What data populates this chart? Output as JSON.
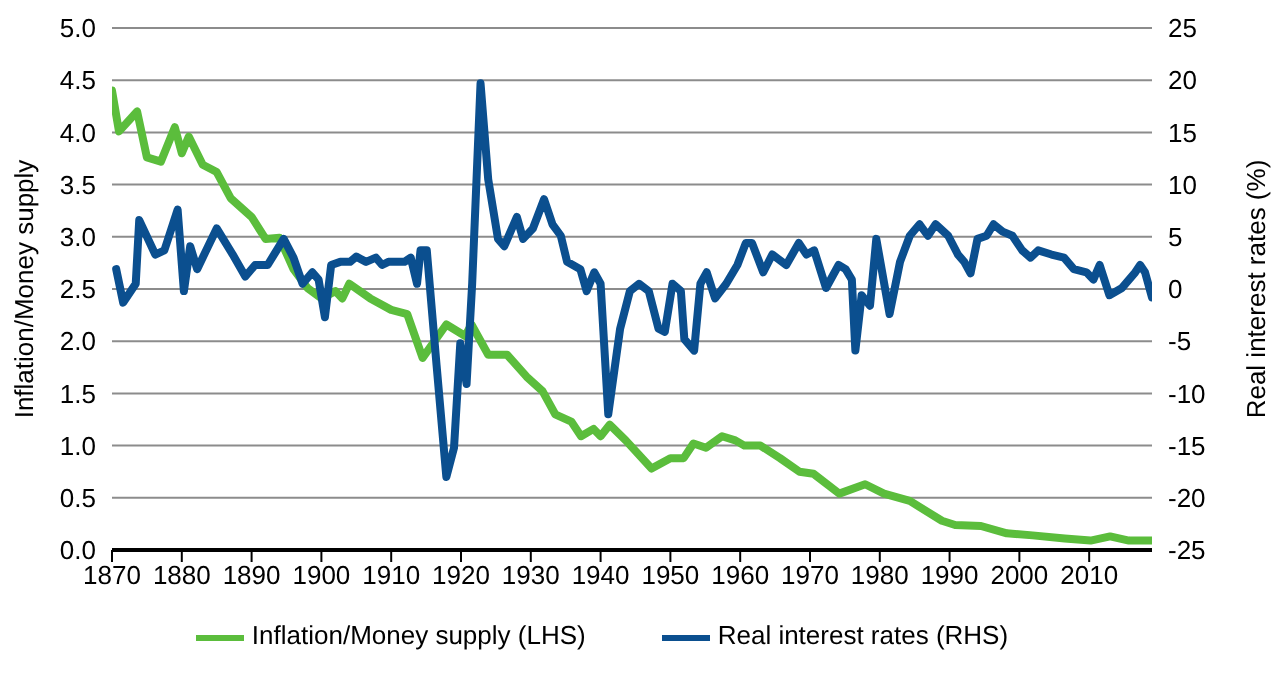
{
  "chart_data": {
    "type": "line",
    "ylabel": "Inflation/Money supply",
    "y2label": "Real interest rates (%)",
    "xlim": [
      1870,
      2019
    ],
    "xticks": [
      1870,
      1880,
      1890,
      1900,
      1910,
      1920,
      1930,
      1940,
      1950,
      1960,
      1970,
      1980,
      1990,
      2000,
      2010
    ],
    "ylim": [
      0,
      5
    ],
    "yticks": [
      {
        "value": 0,
        "label": "0.0"
      },
      0.5,
      {
        "value": 1,
        "label": "1.0"
      },
      1.5,
      {
        "value": 2,
        "label": "2.0"
      },
      2.5,
      {
        "value": 3,
        "label": "3.0"
      },
      3.5,
      {
        "value": 4,
        "label": "4.0"
      },
      4.5,
      {
        "value": 5,
        "label": "5.0"
      }
    ],
    "y2lim": [
      -25,
      25
    ],
    "y2ticks": [
      -25,
      -20,
      -15,
      -10,
      -5,
      0,
      5,
      10,
      15,
      20,
      25
    ],
    "grid": "y",
    "legend": "bottom",
    "marker": "none",
    "line_style": "solid",
    "series": [
      {
        "name": "Inflation/Money supply (LHS)",
        "color": "#5bbd3c",
        "x": [
          1870,
          1871,
          1873.6,
          1875,
          1877,
          1879,
          1880,
          1881,
          1883,
          1885,
          1887,
          1890,
          1892,
          1894,
          1896,
          1898,
          1900,
          1902,
          1903,
          1904,
          1907,
          1910,
          1912.3,
          1914.5,
          1917.9,
          1920.6,
          1921.5,
          1923.9,
          1926.6,
          1929.4,
          1931.7,
          1933.5,
          1935.8,
          1937.2,
          1939,
          1940,
          1941.3,
          1943.6,
          1947.3,
          1950,
          1951.9,
          1953.3,
          1955.1,
          1957.4,
          1959.3,
          1960.6,
          1962.9,
          1965.7,
          1968.5,
          1970.5,
          1974.2,
          1977.9,
          1980.6,
          1984.3,
          1988.9,
          1990.8,
          1994.5,
          1998.2,
          2001.9,
          2006.5,
          2010.2,
          2013,
          2015.7,
          2019
        ],
        "values": [
          4.4,
          4.01,
          4.2,
          3.76,
          3.72,
          4.05,
          3.8,
          3.96,
          3.69,
          3.62,
          3.37,
          3.19,
          2.98,
          2.99,
          2.69,
          2.51,
          2.41,
          2.48,
          2.41,
          2.55,
          2.41,
          2.3,
          2.26,
          1.84,
          2.16,
          2.05,
          2.16,
          1.87,
          1.87,
          1.66,
          1.52,
          1.3,
          1.23,
          1.09,
          1.16,
          1.09,
          1.2,
          1.05,
          0.78,
          0.88,
          0.88,
          1.02,
          0.98,
          1.09,
          1.05,
          1.0,
          1.0,
          0.88,
          0.75,
          0.73,
          0.54,
          0.63,
          0.54,
          0.47,
          0.28,
          0.24,
          0.23,
          0.16,
          0.14,
          0.11,
          0.09,
          0.13,
          0.09,
          0.09
        ]
      },
      {
        "name": "Real interest rates (RHS)",
        "color": "#0b4f8f",
        "axis": "y2",
        "x": [
          1870.6,
          1871.6,
          1873.4,
          1873.9,
          1876.2,
          1877.5,
          1879.4,
          1880.3,
          1881.2,
          1882.2,
          1885,
          1887.3,
          1889.1,
          1890.5,
          1892.3,
          1894.6,
          1896,
          1897.3,
          1898.7,
          1899.6,
          1900.5,
          1901.4,
          1902.7,
          1904.1,
          1905,
          1906.4,
          1907.8,
          1908.7,
          1909.6,
          1911.9,
          1912.8,
          1913.7,
          1914.2,
          1915.1,
          1916.5,
          1917.9,
          1919,
          1919.9,
          1920.8,
          1921.6,
          1922.8,
          1923.9,
          1925.3,
          1926.2,
          1928,
          1928.9,
          1930.3,
          1931.9,
          1933.1,
          1934.3,
          1935.2,
          1937.1,
          1938,
          1939.1,
          1940,
          1941.1,
          1942.8,
          1944.2,
          1945.5,
          1946.9,
          1948.3,
          1949.2,
          1950.3,
          1951.5,
          1952,
          1953.4,
          1954.3,
          1955.2,
          1956.4,
          1958,
          1959.6,
          1960.8,
          1961.7,
          1963.3,
          1964.6,
          1966.6,
          1968.4,
          1969.5,
          1970.6,
          1972.3,
          1974.1,
          1975.1,
          1976,
          1976.5,
          1977.4,
          1978.6,
          1979.5,
          1981.4,
          1982.9,
          1984.3,
          1985.7,
          1986.9,
          1988,
          1989.8,
          1991.2,
          1992.1,
          1993,
          1994,
          1995.3,
          1996.3,
          1997.6,
          1999,
          2000.4,
          2001.6,
          2002.7,
          2004.6,
          2006.4,
          2007.8,
          2009.6,
          2010.6,
          2011.5,
          2012.9,
          2014.7,
          2016.6,
          2017.3,
          2018,
          2019
        ],
        "values": [
          1.9,
          -1.3,
          0.5,
          6.6,
          3.3,
          3.7,
          7.6,
          -0.2,
          4.1,
          1.9,
          5.8,
          3.3,
          1.2,
          2.3,
          2.3,
          4.8,
          3,
          0.5,
          1.6,
          0.9,
          -2.7,
          2.3,
          2.6,
          2.6,
          3.1,
          2.6,
          3,
          2.3,
          2.6,
          2.6,
          3,
          0.5,
          3.7,
          3.7,
          -7.3,
          -18,
          -15.2,
          -5.2,
          -9.1,
          0.5,
          19.7,
          10.5,
          4.8,
          4.1,
          6.9,
          4.8,
          5.8,
          8.6,
          6.2,
          5.1,
          2.6,
          1.9,
          -0.2,
          1.6,
          0.5,
          -12,
          -3.8,
          -0.2,
          0.5,
          -0.2,
          -3.8,
          -4.1,
          0.5,
          -0.2,
          -4.8,
          -5.9,
          0.5,
          1.6,
          -0.9,
          0.5,
          2.3,
          4.4,
          4.4,
          1.6,
          3.3,
          2.3,
          4.4,
          3.3,
          3.7,
          0.1,
          2.3,
          1.9,
          0.9,
          -5.9,
          -0.6,
          -1.6,
          4.8,
          -2.4,
          2.6,
          5.1,
          6.2,
          5.1,
          6.2,
          5.1,
          3.3,
          2.6,
          1.5,
          4.8,
          5.1,
          6.2,
          5.5,
          5.1,
          3.7,
          3,
          3.7,
          3.3,
          3,
          1.9,
          1.6,
          0.9,
          2.3,
          -0.6,
          0.1,
          1.6,
          2.3,
          1.6,
          -0.8
        ]
      }
    ]
  }
}
